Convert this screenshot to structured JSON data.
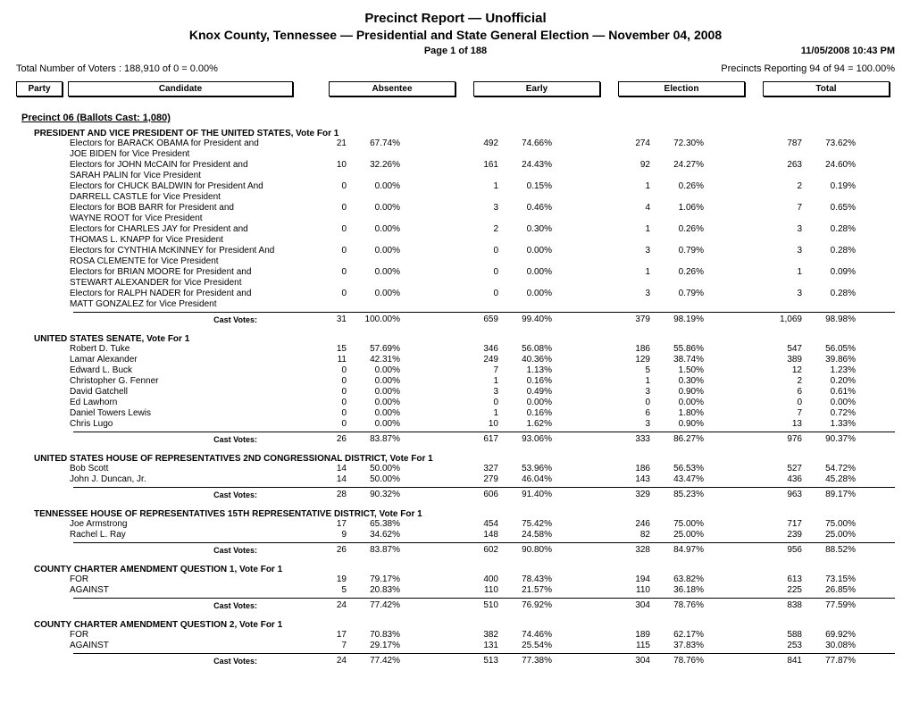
{
  "header": {
    "title1": "Precinct Report  —  Unofficial",
    "title2": "Knox County, Tennessee  —  Presidential and State General Election  —  November 04, 2008",
    "page": "Page 1 of 188",
    "timestamp": "11/05/2008 10:43 PM",
    "voters": "Total Number of Voters : 188,910 of 0 = 0.00%",
    "precincts": "Precincts Reporting 94 of 94 = 100.00%"
  },
  "columns": {
    "party": "Party",
    "candidate": "Candidate",
    "absentee": "Absentee",
    "early": "Early",
    "election": "Election",
    "total": "Total"
  },
  "precinct": "Precinct 06  (Ballots Cast: 1,080)",
  "cast_label": "Cast Votes:",
  "races": [
    {
      "title": "PRESIDENT AND VICE PRESIDENT OF THE UNITED STATES, Vote For 1",
      "candidates": [
        {
          "name": "Electors for BARACK OBAMA for President and JOE BIDEN for Vice President",
          "abs_n": "21",
          "abs_p": "67.74%",
          "early_n": "492",
          "early_p": "74.66%",
          "elec_n": "274",
          "elec_p": "72.30%",
          "tot_n": "787",
          "tot_p": "73.62%"
        },
        {
          "name": "Electors for JOHN McCAIN for President and SARAH PALIN for Vice President",
          "abs_n": "10",
          "abs_p": "32.26%",
          "early_n": "161",
          "early_p": "24.43%",
          "elec_n": "92",
          "elec_p": "24.27%",
          "tot_n": "263",
          "tot_p": "24.60%"
        },
        {
          "name": "Electors for CHUCK BALDWIN for President And DARRELL CASTLE for Vice President",
          "abs_n": "0",
          "abs_p": "0.00%",
          "early_n": "1",
          "early_p": "0.15%",
          "elec_n": "1",
          "elec_p": "0.26%",
          "tot_n": "2",
          "tot_p": "0.19%"
        },
        {
          "name": "Electors for BOB BARR for President and WAYNE ROOT for Vice President",
          "abs_n": "0",
          "abs_p": "0.00%",
          "early_n": "3",
          "early_p": "0.46%",
          "elec_n": "4",
          "elec_p": "1.06%",
          "tot_n": "7",
          "tot_p": "0.65%"
        },
        {
          "name": "Electors for CHARLES JAY for President and THOMAS L. KNAPP for Vice President",
          "abs_n": "0",
          "abs_p": "0.00%",
          "early_n": "2",
          "early_p": "0.30%",
          "elec_n": "1",
          "elec_p": "0.26%",
          "tot_n": "3",
          "tot_p": "0.28%"
        },
        {
          "name": "Electors for CYNTHIA McKINNEY for President And ROSA CLEMENTE for Vice President",
          "abs_n": "0",
          "abs_p": "0.00%",
          "early_n": "0",
          "early_p": "0.00%",
          "elec_n": "3",
          "elec_p": "0.79%",
          "tot_n": "3",
          "tot_p": "0.28%"
        },
        {
          "name": "Electors for BRIAN MOORE for President and STEWART ALEXANDER for Vice President",
          "abs_n": "0",
          "abs_p": "0.00%",
          "early_n": "0",
          "early_p": "0.00%",
          "elec_n": "1",
          "elec_p": "0.26%",
          "tot_n": "1",
          "tot_p": "0.09%"
        },
        {
          "name": "Electors for RALPH NADER for President and MATT GONZALEZ for Vice President",
          "abs_n": "0",
          "abs_p": "0.00%",
          "early_n": "0",
          "early_p": "0.00%",
          "elec_n": "3",
          "elec_p": "0.79%",
          "tot_n": "3",
          "tot_p": "0.28%"
        }
      ],
      "cast": {
        "abs_n": "31",
        "abs_p": "100.00%",
        "early_n": "659",
        "early_p": "99.40%",
        "elec_n": "379",
        "elec_p": "98.19%",
        "tot_n": "1,069",
        "tot_p": "98.98%"
      }
    },
    {
      "title": "UNITED STATES SENATE, Vote For 1",
      "candidates": [
        {
          "name": "Robert D. Tuke",
          "abs_n": "15",
          "abs_p": "57.69%",
          "early_n": "346",
          "early_p": "56.08%",
          "elec_n": "186",
          "elec_p": "55.86%",
          "tot_n": "547",
          "tot_p": "56.05%"
        },
        {
          "name": "Lamar Alexander",
          "abs_n": "11",
          "abs_p": "42.31%",
          "early_n": "249",
          "early_p": "40.36%",
          "elec_n": "129",
          "elec_p": "38.74%",
          "tot_n": "389",
          "tot_p": "39.86%"
        },
        {
          "name": "Edward L. Buck",
          "abs_n": "0",
          "abs_p": "0.00%",
          "early_n": "7",
          "early_p": "1.13%",
          "elec_n": "5",
          "elec_p": "1.50%",
          "tot_n": "12",
          "tot_p": "1.23%"
        },
        {
          "name": "Christopher G. Fenner",
          "abs_n": "0",
          "abs_p": "0.00%",
          "early_n": "1",
          "early_p": "0.16%",
          "elec_n": "1",
          "elec_p": "0.30%",
          "tot_n": "2",
          "tot_p": "0.20%"
        },
        {
          "name": "David Gatchell",
          "abs_n": "0",
          "abs_p": "0.00%",
          "early_n": "3",
          "early_p": "0.49%",
          "elec_n": "3",
          "elec_p": "0.90%",
          "tot_n": "6",
          "tot_p": "0.61%"
        },
        {
          "name": "Ed Lawhorn",
          "abs_n": "0",
          "abs_p": "0.00%",
          "early_n": "0",
          "early_p": "0.00%",
          "elec_n": "0",
          "elec_p": "0.00%",
          "tot_n": "0",
          "tot_p": "0.00%"
        },
        {
          "name": "Daniel Towers Lewis",
          "abs_n": "0",
          "abs_p": "0.00%",
          "early_n": "1",
          "early_p": "0.16%",
          "elec_n": "6",
          "elec_p": "1.80%",
          "tot_n": "7",
          "tot_p": "0.72%"
        },
        {
          "name": "Chris Lugo",
          "abs_n": "0",
          "abs_p": "0.00%",
          "early_n": "10",
          "early_p": "1.62%",
          "elec_n": "3",
          "elec_p": "0.90%",
          "tot_n": "13",
          "tot_p": "1.33%"
        }
      ],
      "cast": {
        "abs_n": "26",
        "abs_p": "83.87%",
        "early_n": "617",
        "early_p": "93.06%",
        "elec_n": "333",
        "elec_p": "86.27%",
        "tot_n": "976",
        "tot_p": "90.37%"
      }
    },
    {
      "title": "UNITED STATES HOUSE OF REPRESENTATIVES 2ND CONGRESSIONAL DISTRICT, Vote For 1",
      "candidates": [
        {
          "name": "Bob Scott",
          "abs_n": "14",
          "abs_p": "50.00%",
          "early_n": "327",
          "early_p": "53.96%",
          "elec_n": "186",
          "elec_p": "56.53%",
          "tot_n": "527",
          "tot_p": "54.72%"
        },
        {
          "name": "John J. Duncan, Jr.",
          "abs_n": "14",
          "abs_p": "50.00%",
          "early_n": "279",
          "early_p": "46.04%",
          "elec_n": "143",
          "elec_p": "43.47%",
          "tot_n": "436",
          "tot_p": "45.28%"
        }
      ],
      "cast": {
        "abs_n": "28",
        "abs_p": "90.32%",
        "early_n": "606",
        "early_p": "91.40%",
        "elec_n": "329",
        "elec_p": "85.23%",
        "tot_n": "963",
        "tot_p": "89.17%"
      }
    },
    {
      "title": "TENNESSEE HOUSE OF REPRESENTATIVES 15TH REPRESENTATIVE DISTRICT, Vote For 1",
      "candidates": [
        {
          "name": "Joe Armstrong",
          "abs_n": "17",
          "abs_p": "65.38%",
          "early_n": "454",
          "early_p": "75.42%",
          "elec_n": "246",
          "elec_p": "75.00%",
          "tot_n": "717",
          "tot_p": "75.00%"
        },
        {
          "name": "Rachel L. Ray",
          "abs_n": "9",
          "abs_p": "34.62%",
          "early_n": "148",
          "early_p": "24.58%",
          "elec_n": "82",
          "elec_p": "25.00%",
          "tot_n": "239",
          "tot_p": "25.00%"
        }
      ],
      "cast": {
        "abs_n": "26",
        "abs_p": "83.87%",
        "early_n": "602",
        "early_p": "90.80%",
        "elec_n": "328",
        "elec_p": "84.97%",
        "tot_n": "956",
        "tot_p": "88.52%"
      }
    },
    {
      "title": "COUNTY CHARTER AMENDMENT QUESTION 1, Vote For 1",
      "candidates": [
        {
          "name": "FOR",
          "abs_n": "19",
          "abs_p": "79.17%",
          "early_n": "400",
          "early_p": "78.43%",
          "elec_n": "194",
          "elec_p": "63.82%",
          "tot_n": "613",
          "tot_p": "73.15%"
        },
        {
          "name": "AGAINST",
          "abs_n": "5",
          "abs_p": "20.83%",
          "early_n": "110",
          "early_p": "21.57%",
          "elec_n": "110",
          "elec_p": "36.18%",
          "tot_n": "225",
          "tot_p": "26.85%"
        }
      ],
      "cast": {
        "abs_n": "24",
        "abs_p": "77.42%",
        "early_n": "510",
        "early_p": "76.92%",
        "elec_n": "304",
        "elec_p": "78.76%",
        "tot_n": "838",
        "tot_p": "77.59%"
      }
    },
    {
      "title": "COUNTY CHARTER AMENDMENT QUESTION 2, Vote For 1",
      "candidates": [
        {
          "name": "FOR",
          "abs_n": "17",
          "abs_p": "70.83%",
          "early_n": "382",
          "early_p": "74.46%",
          "elec_n": "189",
          "elec_p": "62.17%",
          "tot_n": "588",
          "tot_p": "69.92%"
        },
        {
          "name": "AGAINST",
          "abs_n": "7",
          "abs_p": "29.17%",
          "early_n": "131",
          "early_p": "25.54%",
          "elec_n": "115",
          "elec_p": "37.83%",
          "tot_n": "253",
          "tot_p": "30.08%"
        }
      ],
      "cast": {
        "abs_n": "24",
        "abs_p": "77.42%",
        "early_n": "513",
        "early_p": "77.38%",
        "elec_n": "304",
        "elec_p": "78.76%",
        "tot_n": "841",
        "tot_p": "77.87%"
      }
    }
  ]
}
